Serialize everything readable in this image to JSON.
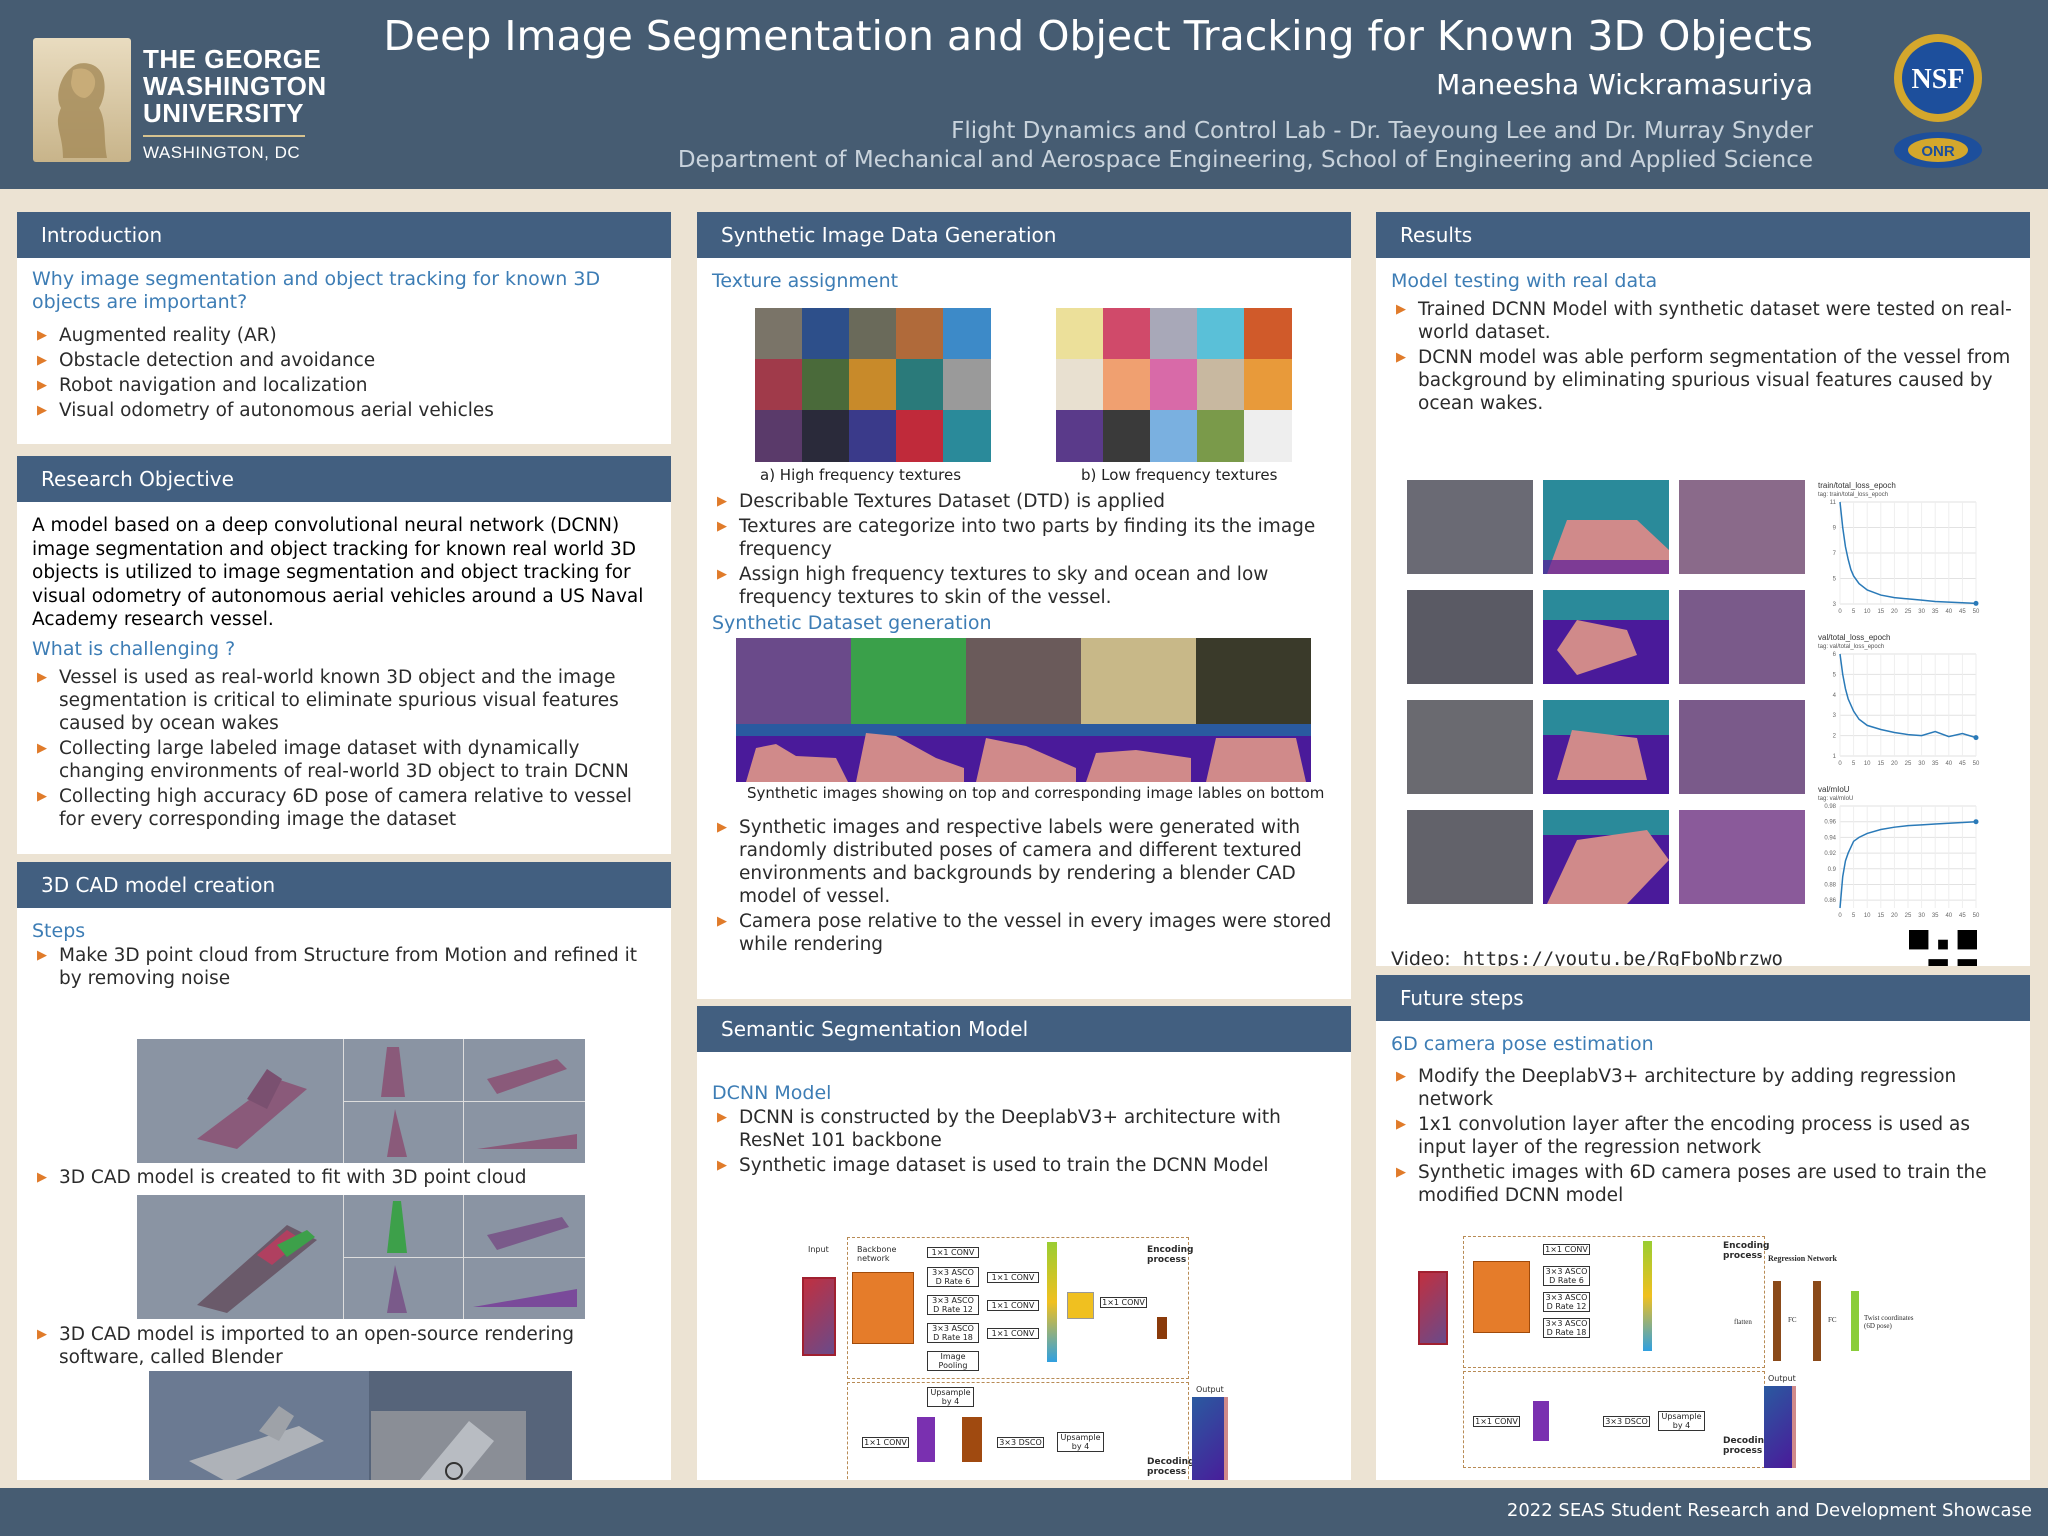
{
  "header": {
    "university_lines": [
      "THE GEORGE",
      "WASHINGTON",
      "UNIVERSITY"
    ],
    "university_sub": "WASHINGTON, DC",
    "title": "Deep Image Segmentation and Object Tracking for Known 3D Objects",
    "author": "Maneesha Wickramasuriya",
    "affiliation_1": "Flight Dynamics and Control Lab - Dr. Taeyoung Lee and Dr. Murray Snyder",
    "affiliation_2": "Department of Mechanical and Aerospace Engineering, School of Engineering and Applied Science",
    "nsf_logo": "NSF",
    "onr_logo": "ONR"
  },
  "introduction": {
    "heading": "Introduction",
    "question": "Why image segmentation and object tracking for known 3D objects are important?",
    "bullets": [
      "Augmented reality (AR)",
      "Obstacle detection and avoidance",
      "Robot navigation and localization",
      "Visual odometry of autonomous aerial vehicles"
    ]
  },
  "objective": {
    "heading": "Research Objective",
    "text": "A model based on a deep convolutional neural network (DCNN) image segmentation and object tracking for known real world 3D objects is utilized to image segmentation and object tracking for visual odometry of autonomous aerial vehicles around a US Naval Academy research vessel.",
    "challenge_heading": "What is challenging ?",
    "bullets": [
      "Vessel is used as real-world known 3D object and the image segmentation is critical to eliminate spurious visual features caused by ocean wakes",
      "Collecting large labeled image dataset with dynamically changing environments of real-world 3D object to train DCNN",
      "Collecting high accuracy 6D pose of camera relative to vessel for every corresponding image the dataset"
    ]
  },
  "cad": {
    "heading": "3D CAD model creation",
    "steps_heading": "Steps",
    "step_1": "Make 3D point cloud from Structure from Motion and refined it by removing noise",
    "step_2": "3D CAD model is created to fit with 3D point cloud",
    "step_3": "3D CAD model is imported to an open-source rendering software, called Blender"
  },
  "synthetic": {
    "heading": "Synthetic Image Data Generation",
    "texture_heading": "Texture assignment",
    "caption_a": "a) High frequency textures",
    "caption_b": "b) Low frequency textures",
    "bullets_1": [
      "Describable Textures Dataset (DTD) is applied",
      "Textures are categorize into two parts by finding its the image frequency",
      "Assign high frequency textures to sky and ocean and low frequency textures to skin of the vessel."
    ],
    "dataset_heading": "Synthetic Dataset generation",
    "dataset_caption": "Synthetic images showing on top and corresponding image lables on bottom",
    "bullets_2": [
      "Synthetic images and respective labels were generated with randomly distributed poses of camera and different textured environments and backgrounds by rendering a blender CAD model of vessel.",
      "Camera pose relative to the vessel in every images were stored while rendering"
    ]
  },
  "semantic": {
    "heading": "Semantic Segmentation Model",
    "sub_heading": "DCNN Model",
    "bullets": [
      "DCNN is constructed by the DeeplabV3+ architecture with ResNet 101 backbone",
      "Synthetic image dataset is used to train the DCNN Model"
    ],
    "diagram": {
      "input": "Input",
      "backbone": "Backbone network",
      "conv1": "1×1 CONV",
      "asco6": "3×3 ASCO D Rate 6",
      "asco12": "3×3 ASCO D Rate 12",
      "asco18": "3×3 ASCO D Rate 18",
      "pool": "Image Pooling",
      "encoding": "Encoding process",
      "decoding": "Decoding process",
      "upsample": "Upsample by 4",
      "dsco": "3×3 DSCO",
      "output": "Output"
    }
  },
  "results": {
    "heading": "Results",
    "sub_heading": "Model testing with real data",
    "bullets": [
      "Trained DCNN Model with synthetic dataset were tested on real-world dataset.",
      "DCNN model was able perform segmentation of the vessel from background by eliminating spurious visual features caused by ocean wakes."
    ],
    "chart_titles": [
      "train/total_loss_epoch",
      "val/total_loss_epoch",
      "val/mIoU"
    ],
    "chart_tags": [
      "tag: train/total_loss_epoch",
      "tag: val/total_loss_epoch",
      "tag: val/mIoU"
    ],
    "video_label": "Video:",
    "video_url": "https://youtu.be/RgFboNbrzwo"
  },
  "future": {
    "heading": "Future steps",
    "sub_heading": "6D camera pose estimation",
    "bullets": [
      "Modify the DeeplabV3+ architecture by adding regression network",
      "1x1 convolution layer after the encoding process is used as input layer of the regression network",
      "Synthetic images with 6D camera poses are used to train the modified DCNN model"
    ],
    "regression_label": "Regression Network",
    "fc": "FC",
    "flatten": "flatten",
    "twist": "Twist coordinates (6D pose)"
  },
  "chart_data": [
    {
      "type": "line",
      "title": "train/total_loss_epoch",
      "x": [
        0,
        1,
        2,
        3,
        4,
        5,
        7,
        10,
        15,
        20,
        25,
        30,
        35,
        40,
        45,
        50
      ],
      "series": [
        {
          "values": [
            11,
            9,
            7.5,
            6.5,
            5.7,
            5.2,
            4.6,
            4.1,
            3.7,
            3.5,
            3.4,
            3.3,
            3.2,
            3.15,
            3.1,
            3.05
          ]
        }
      ],
      "xlim": [
        0,
        50
      ],
      "ylim": [
        3,
        11
      ],
      "yticks": [
        3,
        5,
        7,
        9,
        11
      ],
      "xticks": [
        0,
        5,
        10,
        15,
        20,
        25,
        30,
        35,
        40,
        45,
        50
      ]
    },
    {
      "type": "line",
      "title": "val/total_loss_epoch",
      "x": [
        0,
        1,
        2,
        3,
        5,
        7,
        10,
        15,
        20,
        25,
        30,
        35,
        40,
        45,
        50
      ],
      "series": [
        {
          "values": [
            6,
            5,
            4.3,
            3.8,
            3.2,
            2.8,
            2.5,
            2.3,
            2.15,
            2.05,
            2.0,
            2.2,
            1.95,
            2.1,
            1.9
          ]
        }
      ],
      "xlim": [
        0,
        50
      ],
      "ylim": [
        1,
        6
      ],
      "yticks": [
        1,
        2,
        3,
        4,
        5,
        6
      ],
      "xticks": [
        0,
        5,
        10,
        15,
        20,
        25,
        30,
        35,
        40,
        45,
        50
      ]
    },
    {
      "type": "line",
      "title": "val/mIoU",
      "x": [
        0,
        1,
        2,
        3,
        5,
        7,
        10,
        15,
        20,
        25,
        30,
        35,
        40,
        45,
        50
      ],
      "series": [
        {
          "values": [
            0.85,
            0.89,
            0.91,
            0.92,
            0.935,
            0.94,
            0.945,
            0.95,
            0.953,
            0.955,
            0.956,
            0.957,
            0.958,
            0.959,
            0.96
          ]
        }
      ],
      "xlim": [
        0,
        50
      ],
      "ylim": [
        0.85,
        0.98
      ],
      "yticks": [
        0.86,
        0.88,
        0.9,
        0.92,
        0.94,
        0.96,
        0.98
      ],
      "xticks": [
        0,
        5,
        10,
        15,
        20,
        25,
        30,
        35,
        40,
        45,
        50
      ]
    }
  ],
  "footer": "2022 SEAS Student Research and Development Showcase",
  "colors": {
    "header": "#465c72",
    "section": "#425f80",
    "accent": "#3d7db5",
    "bullet": "#e07b2a",
    "background": "#ece3d3"
  }
}
